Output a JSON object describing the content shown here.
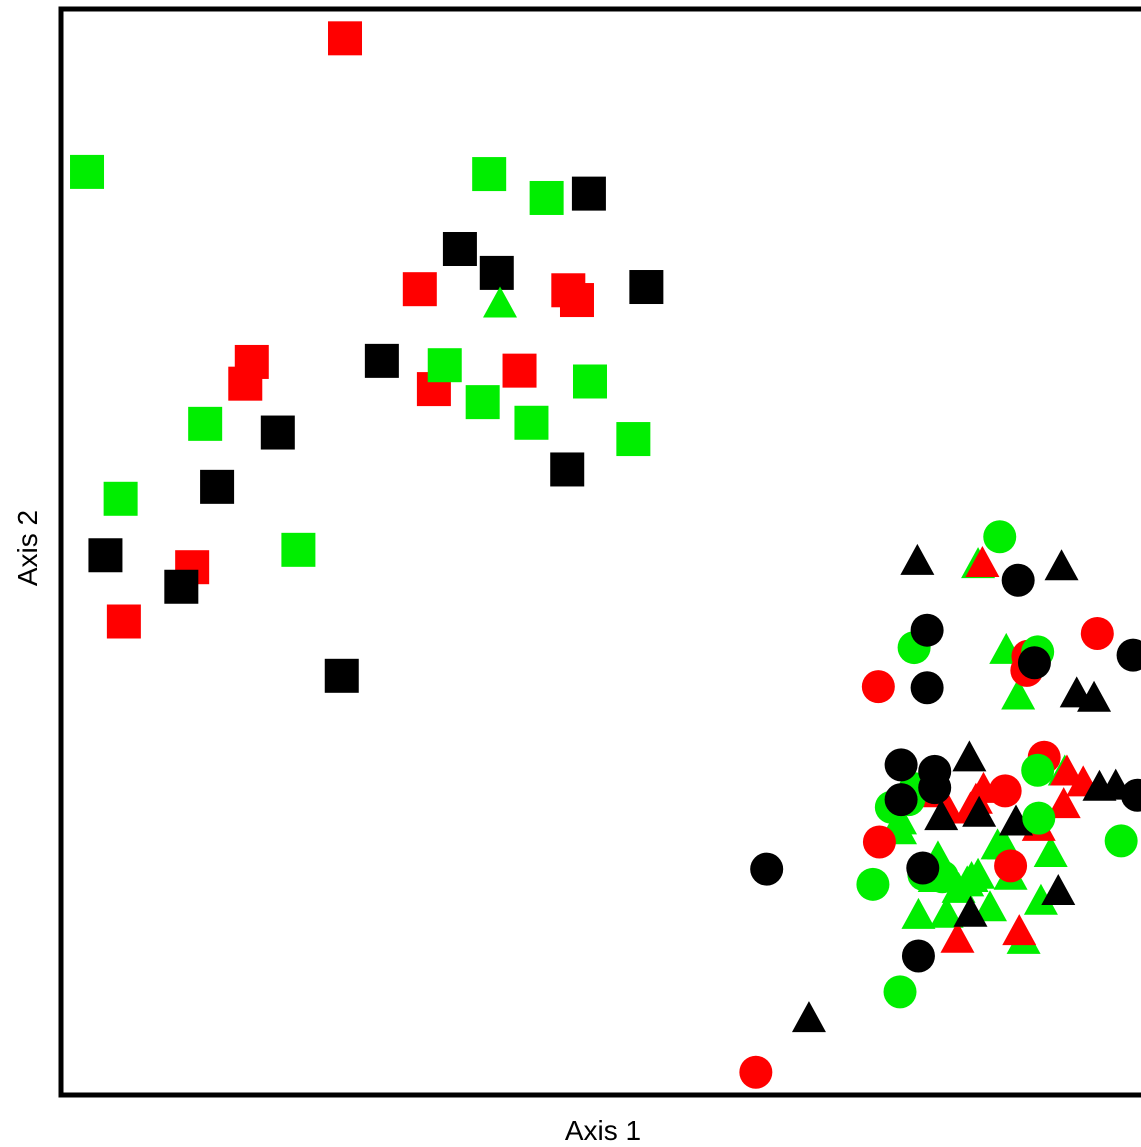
{
  "chart_data": {
    "type": "scatter",
    "title": "",
    "xlabel": "Axis 1",
    "ylabel": "Axis 2",
    "xlim": [
      0,
      100
    ],
    "ylim": [
      0,
      100
    ],
    "grid": false,
    "legend": "none",
    "colors": {
      "red": "#ff0000",
      "green": "#00ee00",
      "black": "#000000"
    },
    "series": [
      {
        "color": "red",
        "shape": "square",
        "points": [
          [
            26.2,
            97.3
          ],
          [
            33.1,
            74.2
          ],
          [
            46.8,
            74.1
          ],
          [
            47.6,
            73.2
          ],
          [
            17.6,
            67.5
          ],
          [
            17.0,
            65.5
          ],
          [
            34.4,
            65.0
          ],
          [
            42.3,
            66.7
          ],
          [
            12.1,
            48.6
          ],
          [
            5.8,
            43.6
          ]
        ]
      },
      {
        "color": "green",
        "shape": "square",
        "points": [
          [
            2.4,
            85.0
          ],
          [
            39.5,
            84.8
          ],
          [
            44.8,
            82.6
          ],
          [
            35.4,
            67.2
          ],
          [
            48.8,
            65.7
          ],
          [
            38.9,
            63.8
          ],
          [
            43.4,
            61.9
          ],
          [
            13.3,
            61.8
          ],
          [
            52.8,
            60.4
          ],
          [
            5.5,
            54.9
          ],
          [
            21.9,
            50.2
          ]
        ]
      },
      {
        "color": "black",
        "shape": "square",
        "points": [
          [
            48.7,
            83.0
          ],
          [
            36.8,
            77.9
          ],
          [
            40.2,
            75.7
          ],
          [
            54.0,
            74.4
          ],
          [
            29.6,
            67.6
          ],
          [
            20.0,
            61.0
          ],
          [
            46.7,
            57.6
          ],
          [
            14.4,
            56.0
          ],
          [
            4.1,
            49.7
          ],
          [
            11.1,
            46.8
          ],
          [
            25.9,
            38.6
          ]
        ]
      },
      {
        "color": "green",
        "shape": "triangle",
        "points": [
          [
            40.5,
            72.7
          ],
          [
            84.6,
            48.7
          ],
          [
            87.2,
            40.8
          ],
          [
            88.3,
            36.6
          ],
          [
            77.4,
            25.1
          ],
          [
            77.4,
            24.2
          ],
          [
            87.0,
            22.8
          ],
          [
            92.6,
            29.6
          ],
          [
            84.6,
            20.1
          ],
          [
            84.0,
            19.8
          ],
          [
            91.3,
            22.1
          ],
          [
            87.6,
            20.0
          ],
          [
            80.9,
            21.7
          ],
          [
            86.4,
            22.8
          ],
          [
            80.6,
            19.8
          ],
          [
            82.8,
            18.8
          ],
          [
            81.7,
            16.5
          ],
          [
            85.7,
            17.1
          ],
          [
            90.4,
            17.7
          ],
          [
            79.1,
            16.4
          ],
          [
            88.8,
            14.1
          ],
          [
            83.6,
            19.4
          ]
        ]
      },
      {
        "color": "red",
        "shape": "triangle",
        "points": [
          [
            85.0,
            48.8
          ],
          [
            92.8,
            29.6
          ],
          [
            94.3,
            28.6
          ],
          [
            80.9,
            27.6
          ],
          [
            81.8,
            26.1
          ],
          [
            84.4,
            27.0
          ],
          [
            92.5,
            26.6
          ],
          [
            85.1,
            28.0
          ],
          [
            82.7,
            14.2
          ],
          [
            88.4,
            14.9
          ],
          [
            90.2,
            24.5
          ],
          [
            83.9,
            26.2
          ]
        ]
      },
      {
        "color": "black",
        "shape": "triangle",
        "points": [
          [
            79.0,
            49.0
          ],
          [
            92.3,
            48.5
          ],
          [
            93.7,
            36.8
          ],
          [
            95.3,
            36.4
          ],
          [
            83.8,
            30.9
          ],
          [
            84.7,
            25.8
          ],
          [
            88.1,
            25.0
          ],
          [
            95.8,
            28.2
          ],
          [
            97.3,
            28.3
          ],
          [
            81.2,
            25.5
          ],
          [
            92.0,
            18.6
          ],
          [
            83.9,
            16.6
          ],
          [
            69.0,
            6.9
          ]
        ]
      },
      {
        "color": "red",
        "shape": "circle",
        "points": [
          [
            75.4,
            37.6
          ],
          [
            95.6,
            42.5
          ],
          [
            89.2,
            40.4
          ],
          [
            89.1,
            39.1
          ],
          [
            90.7,
            31.1
          ],
          [
            87.6,
            21.1
          ],
          [
            75.5,
            23.3
          ],
          [
            64.1,
            2.1
          ],
          [
            87.1,
            28.0
          ]
        ]
      },
      {
        "color": "green",
        "shape": "circle",
        "points": [
          [
            86.6,
            51.4
          ],
          [
            90.1,
            40.8
          ],
          [
            78.7,
            41.2
          ],
          [
            78.8,
            28.2
          ],
          [
            76.6,
            26.5
          ],
          [
            78.2,
            27.2
          ],
          [
            90.1,
            29.9
          ],
          [
            90.2,
            25.5
          ],
          [
            97.8,
            23.4
          ],
          [
            79.6,
            20.3
          ],
          [
            81.3,
            20.1
          ],
          [
            74.9,
            19.4
          ],
          [
            77.4,
            9.5
          ]
        ]
      },
      {
        "color": "black",
        "shape": "circle",
        "points": [
          [
            88.3,
            47.4
          ],
          [
            79.9,
            42.8
          ],
          [
            89.8,
            39.8
          ],
          [
            98.9,
            40.5
          ],
          [
            79.9,
            37.5
          ],
          [
            77.5,
            30.4
          ],
          [
            80.6,
            29.8
          ],
          [
            80.6,
            28.3
          ],
          [
            77.5,
            27.2
          ],
          [
            99.3,
            27.6
          ],
          [
            79.5,
            20.9
          ],
          [
            65.1,
            20.8
          ],
          [
            79.1,
            12.8
          ]
        ]
      }
    ]
  }
}
